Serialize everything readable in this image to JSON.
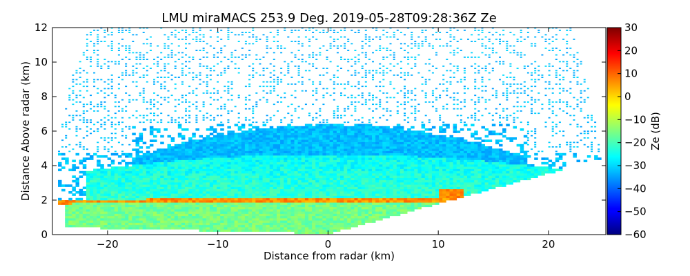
{
  "chart_data": {
    "type": "heatmap",
    "title": "LMU miraMACS 253.9 Deg. 2019-05-28T09:28:36Z  Ze",
    "xlabel": "Distance from radar (km)",
    "ylabel": "Distance Above radar  (km)",
    "xlim": [
      -25,
      25.2
    ],
    "ylim": [
      0,
      12
    ],
    "xticks": [
      -20,
      -10,
      0,
      10,
      20
    ],
    "xtick_labels": [
      "−20",
      "−10",
      "0",
      "10",
      "20"
    ],
    "yticks": [
      0,
      2,
      4,
      6,
      8,
      10,
      12
    ],
    "ytick_labels": [
      "0",
      "2",
      "4",
      "6",
      "8",
      "10",
      "12"
    ],
    "colorbar": {
      "label": "Ze (dB)",
      "range": [
        -60,
        30
      ],
      "ticks": [
        30,
        20,
        10,
        0,
        -10,
        -20,
        -30,
        -40,
        -50,
        -60
      ],
      "tick_labels": [
        "30",
        "20",
        "10",
        "0",
        "−10",
        "−20",
        "−30",
        "−40",
        "−50",
        "−60"
      ],
      "colormap": "jet"
    },
    "scan": {
      "azimuth_deg": 253.9,
      "timestamp": "2019-05-28T09:28:36Z",
      "variable": "Ze",
      "max_range_km": 25
    },
    "regions": [
      {
        "name": "sparse noise speckle",
        "height_km": [
          4,
          12
        ],
        "ze_db": -33
      },
      {
        "name": "upper cloud layer",
        "height_km": [
          4,
          6.3
        ],
        "ze_db": -30
      },
      {
        "name": "main cloud layer",
        "height_km": [
          2,
          4.5
        ],
        "ze_db": -20
      },
      {
        "name": "melting layer bright band",
        "height_km": [
          1.8,
          2.0
        ],
        "ze_db": 5
      },
      {
        "name": "rain below melting layer",
        "height_km": [
          0,
          1.8
        ],
        "ze_db": -14
      }
    ],
    "grid": false
  },
  "colors": {
    "jet_low": "#00007f",
    "jet_mid": "#7fff7f",
    "jet_high": "#7f0000",
    "bright_band": "#ffd000"
  }
}
